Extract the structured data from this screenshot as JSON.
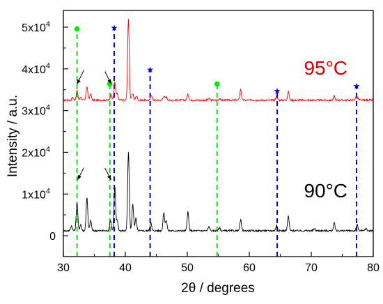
{
  "chart_data": {
    "type": "line",
    "xlabel": "2θ / degrees",
    "ylabel": "Intensity / a.u.",
    "xlim": [
      30,
      80
    ],
    "ylim": [
      -5000,
      54000
    ],
    "x_ticks": [
      {
        "value": 30,
        "label": "30"
      },
      {
        "value": 40,
        "label": "40"
      },
      {
        "value": 50,
        "label": "50"
      },
      {
        "value": 60,
        "label": "60"
      },
      {
        "value": 70,
        "label": "70"
      },
      {
        "value": 80,
        "label": "80"
      }
    ],
    "y_ticks": [
      {
        "value": 0,
        "label": "0"
      },
      {
        "value": 10000,
        "label": "1x10",
        "exp": "4"
      },
      {
        "value": 20000,
        "label": "2x10",
        "exp": "4"
      },
      {
        "value": 30000,
        "label": "3x10",
        "exp": "4"
      },
      {
        "value": 40000,
        "label": "4x10",
        "exp": "4"
      },
      {
        "value": 50000,
        "label": "5x10",
        "exp": "4"
      }
    ],
    "series": [
      {
        "name": "95°C",
        "color": "#ff0000",
        "baseline": 32500,
        "peaks": [
          [
            31.5,
            700
          ],
          [
            32.2,
            2300
          ],
          [
            32.8,
            800
          ],
          [
            33.8,
            3300
          ],
          [
            34.4,
            1500
          ],
          [
            37.7,
            1400
          ],
          [
            38.3,
            4300
          ],
          [
            38.7,
            1500
          ],
          [
            40.5,
            19500
          ],
          [
            41.2,
            1600
          ],
          [
            41.8,
            1000
          ],
          [
            44.2,
            1300
          ],
          [
            46.2,
            1000
          ],
          [
            46.6,
            800
          ],
          [
            50.1,
            1400
          ],
          [
            53.5,
            400
          ],
          [
            55.2,
            400
          ],
          [
            58.6,
            2600
          ],
          [
            64.4,
            900
          ],
          [
            66.3,
            2100
          ],
          [
            73.7,
            1000
          ],
          [
            77.2,
            700
          ],
          [
            77.5,
            500
          ]
        ]
      },
      {
        "name": "90°C",
        "color": "#000000",
        "baseline": 1200,
        "peaks": [
          [
            31.3,
            1200
          ],
          [
            32.2,
            6700
          ],
          [
            32.8,
            1500
          ],
          [
            33.8,
            8000
          ],
          [
            34.4,
            2500
          ],
          [
            37.6,
            2500
          ],
          [
            38.3,
            10500
          ],
          [
            38.7,
            2500
          ],
          [
            40.5,
            18800
          ],
          [
            41.2,
            6300
          ],
          [
            41.7,
            3000
          ],
          [
            44.1,
            2000
          ],
          [
            46.2,
            4300
          ],
          [
            46.6,
            2500
          ],
          [
            50.1,
            4500
          ],
          [
            53.5,
            1000
          ],
          [
            55.2,
            700
          ],
          [
            58.6,
            2600
          ],
          [
            64.4,
            1300
          ],
          [
            66.3,
            3500
          ],
          [
            70.5,
            500
          ],
          [
            73.7,
            1900
          ],
          [
            77.4,
            1500
          ],
          [
            78.8,
            500
          ]
        ]
      }
    ],
    "reference_lines": [
      {
        "x": 32.2,
        "color": "#00ee00",
        "y_top": 50000,
        "marker": "●"
      },
      {
        "x": 37.5,
        "color": "#00ee00",
        "y_top": 36800,
        "marker": "●"
      },
      {
        "x": 54.8,
        "color": "#00ee00",
        "y_top": 36800,
        "marker": "●"
      },
      {
        "x": 38.2,
        "color": "#0000ee",
        "y_top": 50000,
        "marker": "★"
      },
      {
        "x": 44.0,
        "color": "#0000ee",
        "y_top": 40000,
        "marker": "★"
      },
      {
        "x": 64.5,
        "color": "#0000ee",
        "y_top": 34900,
        "marker": "★"
      },
      {
        "x": 77.3,
        "color": "#0000ee",
        "y_top": 36000,
        "marker": "★"
      }
    ],
    "annotations": [
      {
        "text": "95°C",
        "color": "#dd0000"
      },
      {
        "text": "90°C",
        "color": "#000000"
      }
    ],
    "arrows": [
      {
        "x_from": 33.3,
        "y_from": 39700,
        "x_to": 32.2,
        "y_to": 36300
      },
      {
        "x_from": 36.7,
        "y_from": 39400,
        "x_to": 37.7,
        "y_to": 36400
      },
      {
        "x_from": 33.3,
        "y_from": 16300,
        "x_to": 32.3,
        "y_to": 13400
      },
      {
        "x_from": 36.7,
        "y_from": 16200,
        "x_to": 37.7,
        "y_to": 13400
      }
    ],
    "grid": false
  }
}
